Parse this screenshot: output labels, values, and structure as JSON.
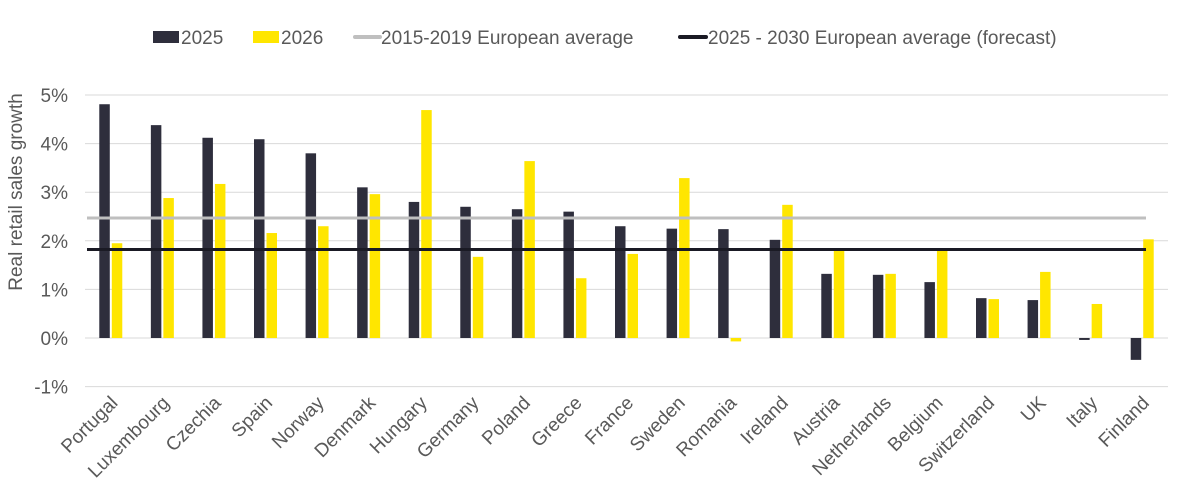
{
  "chart_data": {
    "type": "bar",
    "title": "",
    "xlabel": "",
    "ylabel": "Real retail sales growth",
    "ylim": [
      -1,
      5
    ],
    "yticks": [
      "-1%",
      "0%",
      "1%",
      "2%",
      "3%",
      "4%",
      "5%"
    ],
    "grid": true,
    "legend_position": "top",
    "categories": [
      "Portugal",
      "Luxembourg",
      "Czechia",
      "Spain",
      "Norway",
      "Denmark",
      "Hungary",
      "Germany",
      "Poland",
      "Greece",
      "France",
      "Sweden",
      "Romania",
      "Ireland",
      "Austria",
      "Netherlands",
      "Belgium",
      "Switzerland",
      "UK",
      "Italy",
      "Finland"
    ],
    "series": [
      {
        "name": "2025",
        "color": "#2e2e3c",
        "values": [
          4.81,
          4.38,
          4.12,
          4.09,
          3.8,
          3.1,
          2.8,
          2.7,
          2.65,
          2.6,
          2.3,
          2.25,
          2.24,
          2.02,
          1.32,
          1.3,
          1.15,
          0.82,
          0.78,
          -0.04,
          -0.45
        ]
      },
      {
        "name": "2026",
        "color": "#ffe600",
        "values": [
          1.95,
          2.88,
          3.17,
          2.16,
          2.3,
          2.96,
          4.69,
          1.67,
          3.64,
          1.23,
          1.73,
          3.29,
          -0.07,
          2.74,
          1.81,
          1.32,
          1.81,
          0.8,
          1.36,
          0.7,
          2.03
        ]
      }
    ],
    "reference_lines": [
      {
        "name": "2015-2019 European average",
        "color": "#bfbfbf",
        "value": 2.47
      },
      {
        "name": "2025 - 2030 European average (forecast)",
        "color": "#1a1a24",
        "value": 1.82
      }
    ]
  }
}
